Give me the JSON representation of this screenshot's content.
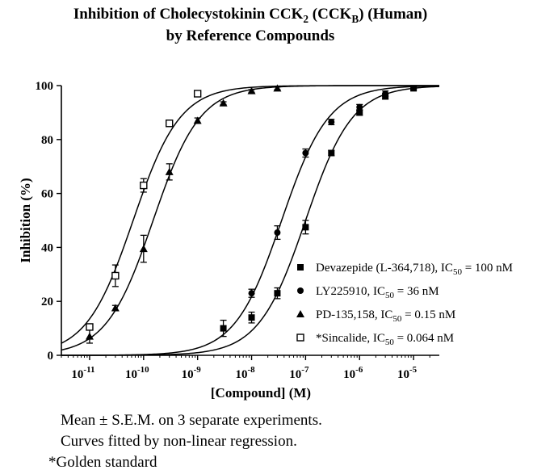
{
  "title_line1_pre": "Inhibition of  Cholecystokinin CCK",
  "title_line1_sub1": "2",
  "title_line1_mid": " (CCK",
  "title_line1_sub2": "B",
  "title_line1_post": ") (Human)",
  "title_line2": "by Reference Compounds",
  "notes": {
    "line1": "Mean ± S.E.M. on 3 separate experiments.",
    "line2": "Curves fitted by non-linear regression.",
    "line3": "*Golden standard"
  },
  "chart_data": {
    "type": "scatter",
    "xlabel": "[Compound] (M)",
    "ylabel": "Inhibition (%)",
    "xscale": "log",
    "xlim": [
      3e-12,
      3e-05
    ],
    "ylim": [
      0,
      100
    ],
    "yticks": [
      0,
      20,
      40,
      60,
      80,
      100
    ],
    "xticks": [
      {
        "value": 1e-11,
        "base": "10",
        "exp": "-11"
      },
      {
        "value": 1e-10,
        "base": "10",
        "exp": "-10"
      },
      {
        "value": 1e-09,
        "base": "10",
        "exp": "-9"
      },
      {
        "value": 1e-08,
        "base": "10",
        "exp": "-8"
      },
      {
        "value": 1e-07,
        "base": "10",
        "exp": "-7"
      },
      {
        "value": 1e-06,
        "base": "10",
        "exp": "-6"
      },
      {
        "value": 1e-05,
        "base": "10",
        "exp": "-5"
      }
    ],
    "grid": false,
    "legend_position": "bottom-right",
    "series": [
      {
        "key": "devazepide",
        "label_pre": "Devazepide (L-364,718), IC",
        "label_sub": "50",
        "label_post": " = 100 nM",
        "marker": "filled-square",
        "ic50": 1e-07,
        "points": [
          {
            "x": 3e-09,
            "y": 10,
            "err": 3
          },
          {
            "x": 1e-08,
            "y": 14,
            "err": 2
          },
          {
            "x": 3e-08,
            "y": 23,
            "err": 2
          },
          {
            "x": 1e-07,
            "y": 47.5,
            "err": 2.5
          },
          {
            "x": 3e-07,
            "y": 75,
            "err": 1
          },
          {
            "x": 1e-06,
            "y": 90,
            "err": 1
          },
          {
            "x": 3e-06,
            "y": 96,
            "err": 1
          },
          {
            "x": 1e-05,
            "y": 99,
            "err": 0.5
          }
        ]
      },
      {
        "key": "ly225910",
        "label_pre": "LY225910, IC",
        "label_sub": "50",
        "label_post": " = 36 nM",
        "marker": "filled-circle",
        "ic50": 3.6e-08,
        "points": [
          {
            "x": 1e-08,
            "y": 23,
            "err": 1.5
          },
          {
            "x": 3e-08,
            "y": 45.5,
            "err": 2.5
          },
          {
            "x": 1e-07,
            "y": 75,
            "err": 1.5
          },
          {
            "x": 3e-07,
            "y": 86.5,
            "err": 1
          },
          {
            "x": 1e-06,
            "y": 92,
            "err": 1
          },
          {
            "x": 3e-06,
            "y": 97,
            "err": 1
          }
        ]
      },
      {
        "key": "pd135158",
        "label_pre": "PD-135,158, IC",
        "label_sub": "50",
        "label_post": " = 0.15 nM",
        "marker": "filled-triangle",
        "ic50": 1.5e-10,
        "points": [
          {
            "x": 1e-11,
            "y": 7,
            "err": 2.5
          },
          {
            "x": 3e-11,
            "y": 17.5,
            "err": 1
          },
          {
            "x": 1e-10,
            "y": 39.5,
            "err": 5
          },
          {
            "x": 3e-10,
            "y": 68,
            "err": 3
          },
          {
            "x": 1e-09,
            "y": 87,
            "err": 1
          },
          {
            "x": 3e-09,
            "y": 93.5,
            "err": 0.5
          },
          {
            "x": 1e-08,
            "y": 98,
            "err": 0.5
          },
          {
            "x": 3e-08,
            "y": 99,
            "err": 0.5
          }
        ]
      },
      {
        "key": "sincalide",
        "label_pre": "*Sincalide, IC",
        "label_sub": "50",
        "label_post": " = 0.064 nM",
        "marker": "open-square",
        "ic50": 6.4e-11,
        "points": [
          {
            "x": 1e-11,
            "y": 10.5,
            "err": 1
          },
          {
            "x": 3e-11,
            "y": 29.5,
            "err": 4
          },
          {
            "x": 1e-10,
            "y": 63,
            "err": 2.5
          },
          {
            "x": 3e-10,
            "y": 86,
            "err": 1
          },
          {
            "x": 1e-09,
            "y": 97,
            "err": 1
          }
        ]
      }
    ]
  }
}
